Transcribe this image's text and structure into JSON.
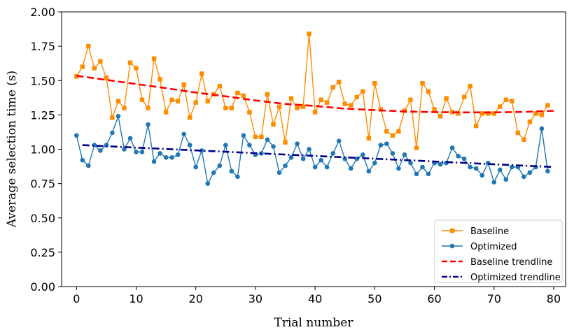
{
  "chart_data": {
    "type": "line",
    "title": "",
    "xlabel": "Trial number",
    "ylabel": "Average selection time (s)",
    "xlim": [
      -2.5,
      82
    ],
    "ylim": [
      0.0,
      2.0
    ],
    "xticks": [
      "0",
      "10",
      "20",
      "30",
      "40",
      "50",
      "60",
      "70",
      "80"
    ],
    "yticks": [
      "0.00",
      "0.25",
      "0.50",
      "0.75",
      "1.00",
      "1.25",
      "1.50",
      "1.75",
      "2.00"
    ],
    "grid": false,
    "legend_position": "lower-right",
    "x": [
      0,
      1,
      2,
      3,
      4,
      5,
      6,
      7,
      8,
      9,
      10,
      11,
      12,
      13,
      14,
      15,
      16,
      17,
      18,
      19,
      20,
      21,
      22,
      23,
      24,
      25,
      26,
      27,
      28,
      29,
      30,
      31,
      32,
      33,
      34,
      35,
      36,
      37,
      38,
      39,
      40,
      41,
      42,
      43,
      44,
      45,
      46,
      47,
      48,
      49,
      50,
      51,
      52,
      53,
      54,
      55,
      56,
      57,
      58,
      59,
      60,
      61,
      62,
      63,
      64,
      65,
      66,
      67,
      68,
      69,
      70,
      71,
      72,
      73,
      74,
      75,
      76,
      77,
      78,
      79
    ],
    "series": [
      {
        "name": "Baseline",
        "color": "#ff8c00",
        "marker": "square",
        "values": [
          1.53,
          1.6,
          1.75,
          1.59,
          1.64,
          1.52,
          1.23,
          1.35,
          1.3,
          1.63,
          1.59,
          1.36,
          1.3,
          1.66,
          1.51,
          1.27,
          1.36,
          1.35,
          1.47,
          1.23,
          1.34,
          1.55,
          1.35,
          1.4,
          1.46,
          1.3,
          1.3,
          1.41,
          1.39,
          1.27,
          1.09,
          1.09,
          1.4,
          1.18,
          1.31,
          1.05,
          1.37,
          1.3,
          1.31,
          1.84,
          1.27,
          1.36,
          1.34,
          1.45,
          1.49,
          1.33,
          1.32,
          1.38,
          1.42,
          1.08,
          1.48,
          1.29,
          1.13,
          1.1,
          1.13,
          1.28,
          1.36,
          1.01,
          1.48,
          1.42,
          1.29,
          1.24,
          1.37,
          1.27,
          1.26,
          1.38,
          1.46,
          1.17,
          1.26,
          1.26,
          1.26,
          1.31,
          1.36,
          1.35,
          1.12,
          1.07,
          1.2,
          1.26,
          1.25,
          1.32
        ]
      },
      {
        "name": "Optimized",
        "color": "#1f77b4",
        "marker": "circle",
        "values": [
          1.1,
          0.92,
          0.88,
          1.03,
          0.99,
          1.03,
          1.12,
          1.24,
          1.0,
          1.08,
          0.98,
          0.98,
          1.18,
          0.91,
          0.97,
          0.94,
          0.94,
          0.96,
          1.11,
          1.03,
          0.87,
          0.99,
          0.75,
          0.83,
          0.88,
          1.03,
          0.84,
          0.8,
          1.1,
          1.03,
          0.96,
          0.97,
          1.07,
          1.02,
          0.83,
          0.88,
          0.94,
          1.04,
          0.93,
          1.0,
          0.87,
          0.92,
          0.87,
          0.97,
          1.06,
          0.93,
          0.86,
          0.93,
          0.96,
          0.84,
          0.9,
          1.03,
          1.04,
          0.97,
          0.86,
          0.96,
          0.9,
          0.82,
          0.87,
          0.82,
          0.9,
          0.89,
          0.9,
          1.01,
          0.95,
          0.93,
          0.87,
          0.86,
          0.81,
          0.9,
          0.76,
          0.85,
          0.78,
          0.87,
          0.87,
          0.8,
          0.83,
          0.87,
          1.15,
          0.84
        ]
      },
      {
        "name": "Baseline trendline",
        "color": "#ff0000",
        "style": "dashed",
        "x": [
          0,
          5,
          10,
          15,
          20,
          25,
          30,
          35,
          40,
          45,
          50,
          55,
          60,
          65,
          70,
          75,
          80
        ],
        "values": [
          1.535,
          1.505,
          1.475,
          1.445,
          1.412,
          1.385,
          1.355,
          1.33,
          1.315,
          1.295,
          1.285,
          1.275,
          1.27,
          1.268,
          1.268,
          1.272,
          1.28
        ]
      },
      {
        "name": "Optimized trendline",
        "color": "#00008b",
        "style": "dashdot",
        "x": [
          1,
          80
        ],
        "values": [
          1.03,
          0.87
        ]
      }
    ]
  }
}
